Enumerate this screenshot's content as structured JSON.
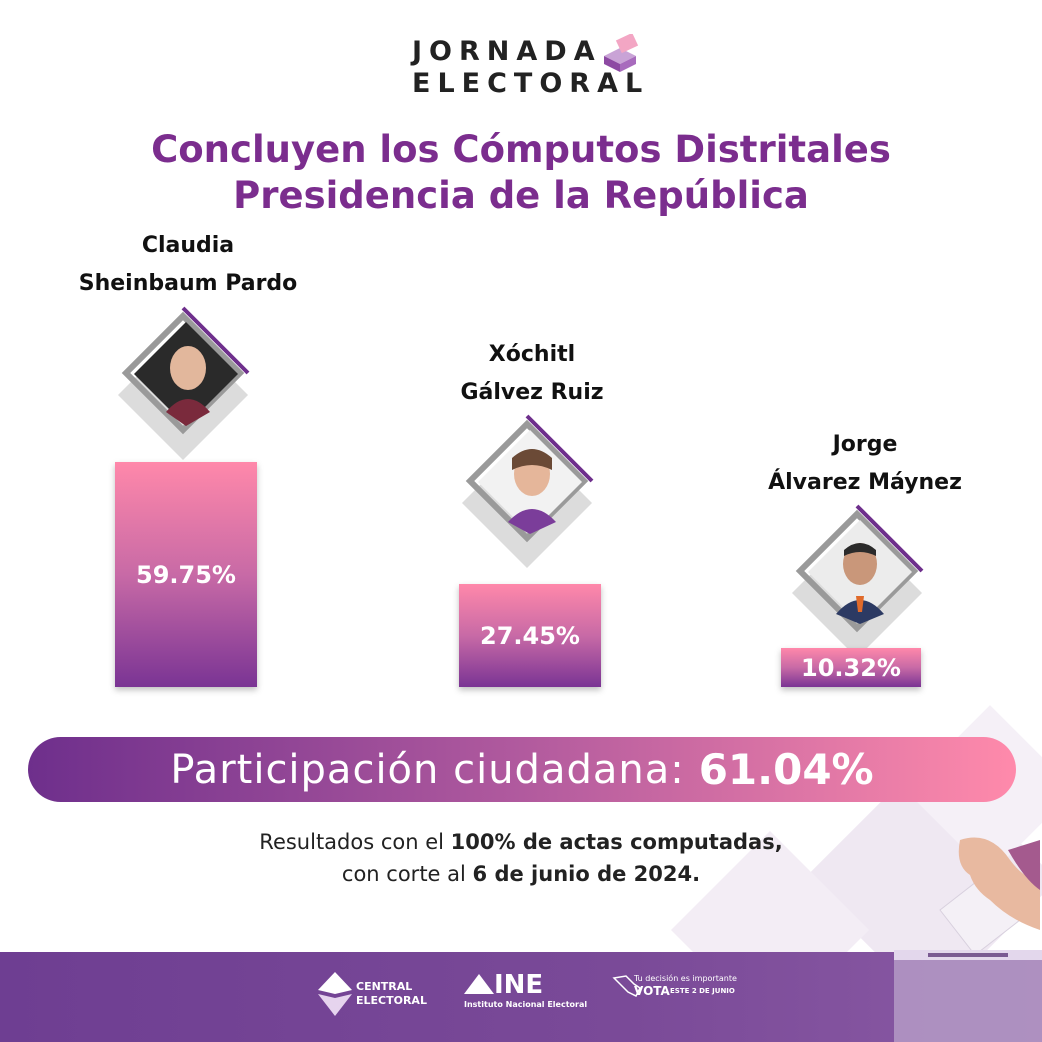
{
  "header": {
    "logo_line1": "JORNADA",
    "logo_line2": "ELECTORAL",
    "title_line1": "Concluyen los Cómputos Distritales",
    "title_line2": "Presidencia de la República"
  },
  "chart_data": {
    "type": "bar",
    "categories": [
      "Claudia Sheinbaum Pardo",
      "Xóchitl Gálvez Ruiz",
      "Jorge Álvarez Máynez"
    ],
    "name_lines": [
      [
        "Claudia",
        "Sheinbaum Pardo"
      ],
      [
        "Xóchitl",
        "Gálvez Ruiz"
      ],
      [
        "Jorge",
        "Álvarez Máynez"
      ]
    ],
    "values": [
      59.75,
      27.45,
      10.32
    ],
    "value_labels": [
      "59.75%",
      "27.45%",
      "10.32%"
    ],
    "ylim": [
      0,
      100
    ],
    "grid": false,
    "colors": {
      "bar_top": "#ff88aa",
      "bar_bottom": "#7a3494"
    }
  },
  "participation": {
    "label": "Participación ciudadana:",
    "value": "61.04%"
  },
  "note": {
    "line1_a": "Resultados con el ",
    "line1_b": "100% de actas computadas,",
    "line2_a": "con corte al ",
    "line2_b": "6 de junio de 2024."
  },
  "footer": {
    "logo1_line1": "CENTRAL",
    "logo1_line2": "ELECTORAL",
    "logo2_main": "INE",
    "logo2_sub": "Instituto Nacional Electoral",
    "logo3_line1": "Tu decisión es importante",
    "logo3_line2": "VOTA",
    "logo3_line3": "ESTE 2 DE JUNIO"
  },
  "colors": {
    "accent": "#7b2d8e",
    "banner_start": "#6e2f8c",
    "banner_end": "#ff8aab",
    "footer": "#6e3e92"
  }
}
